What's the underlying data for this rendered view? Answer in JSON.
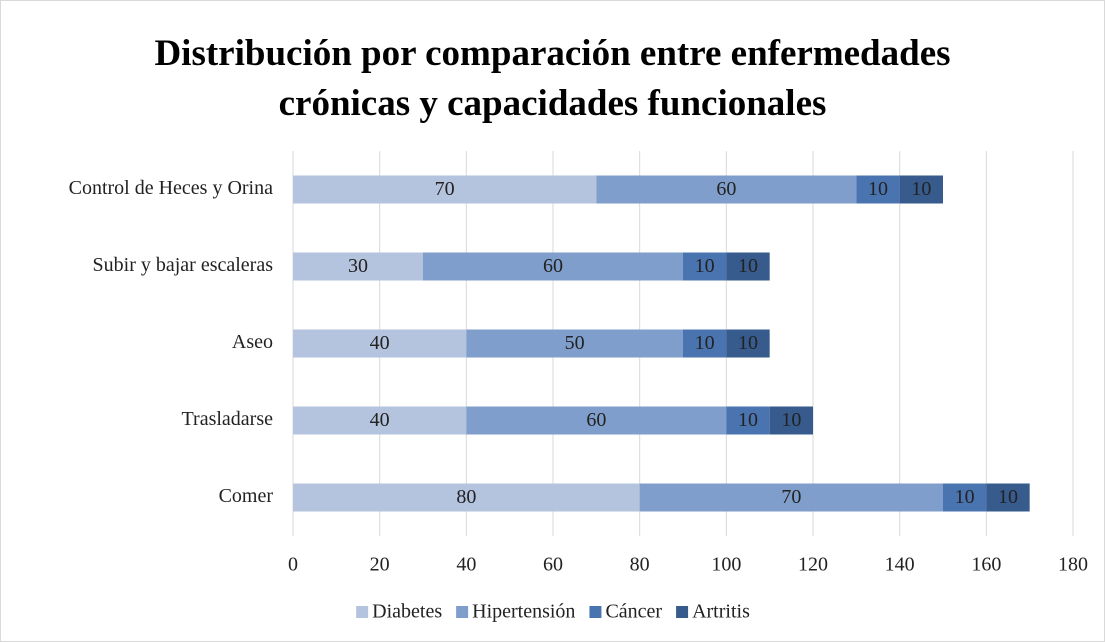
{
  "chart_data": {
    "type": "stacked_bar_horizontal",
    "title": "Distribución por comparación entre enfermedades crónicas y capacidades funcionales",
    "categories": [
      "Control de Heces y Orina",
      "Subir y bajar escaleras",
      "Aseo",
      "Trasladarse",
      "Comer"
    ],
    "series": [
      {
        "name": "Diabetes",
        "color": "#b4c3de",
        "values": [
          70,
          30,
          40,
          40,
          80
        ]
      },
      {
        "name": "Hipertensión",
        "color": "#7f9ecb",
        "values": [
          60,
          60,
          50,
          60,
          70
        ]
      },
      {
        "name": "Cáncer",
        "color": "#4a74b0",
        "values": [
          10,
          10,
          10,
          10,
          10
        ]
      },
      {
        "name": "Artritis",
        "color": "#365b8c",
        "values": [
          10,
          10,
          10,
          10,
          10
        ]
      }
    ],
    "xlim": [
      0,
      180
    ],
    "xticks": [
      0,
      20,
      40,
      60,
      80,
      100,
      120,
      140,
      160,
      180
    ],
    "grid": true,
    "legend": "bottom"
  }
}
